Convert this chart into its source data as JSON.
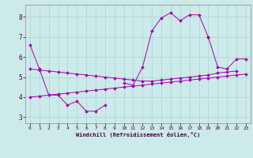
{
  "background_color": "#cceaea",
  "grid_color": "#aad4d4",
  "line_color": "#aa00aa",
  "xlabel": "Windchill (Refroidissement éolien,°C)",
  "xlim": [
    -0.5,
    23.5
  ],
  "ylim": [
    2.7,
    8.6
  ],
  "yticks": [
    3,
    4,
    5,
    6,
    7,
    8
  ],
  "xticks": [
    0,
    1,
    2,
    3,
    4,
    5,
    6,
    7,
    8,
    9,
    10,
    11,
    12,
    13,
    14,
    15,
    16,
    17,
    18,
    19,
    20,
    21,
    22,
    23
  ],
  "connected_series": [
    {
      "x": [
        0,
        1,
        2,
        3,
        4,
        5,
        6,
        7,
        8
      ],
      "y": [
        6.6,
        5.4,
        4.1,
        4.1,
        3.6,
        3.8,
        3.3,
        3.3,
        3.6
      ]
    },
    {
      "x": [
        10,
        11,
        12,
        13,
        14,
        15,
        16,
        17,
        18,
        19
      ],
      "y": [
        4.7,
        4.6,
        5.5,
        7.3,
        7.95,
        8.2,
        7.8,
        8.1,
        8.1,
        7.0
      ]
    },
    {
      "x": [
        19,
        20,
        21,
        22,
        23
      ],
      "y": [
        7.0,
        5.5,
        5.4,
        5.9,
        5.9
      ]
    },
    {
      "x": [
        0,
        1,
        2,
        3,
        4,
        5,
        6,
        7,
        8,
        9,
        10,
        11,
        12,
        13,
        14,
        15,
        16,
        17,
        18,
        19,
        20,
        21,
        22,
        23
      ],
      "y": [
        4.0,
        4.05,
        4.1,
        4.15,
        4.2,
        4.25,
        4.3,
        4.35,
        4.4,
        4.45,
        4.5,
        4.55,
        4.6,
        4.65,
        4.7,
        4.75,
        4.8,
        4.85,
        4.9,
        4.95,
        5.0,
        5.05,
        5.1,
        5.15
      ]
    },
    {
      "x": [
        0,
        1,
        2,
        3,
        4,
        5,
        6,
        7,
        8,
        9,
        10,
        11,
        12,
        13,
        14,
        15,
        16,
        17,
        18,
        19,
        20,
        21,
        22
      ],
      "y": [
        5.4,
        5.35,
        5.3,
        5.25,
        5.2,
        5.15,
        5.1,
        5.05,
        5.0,
        4.95,
        4.9,
        4.85,
        4.8,
        4.8,
        4.85,
        4.9,
        4.95,
        5.0,
        5.05,
        5.1,
        5.2,
        5.25,
        5.3
      ]
    }
  ]
}
